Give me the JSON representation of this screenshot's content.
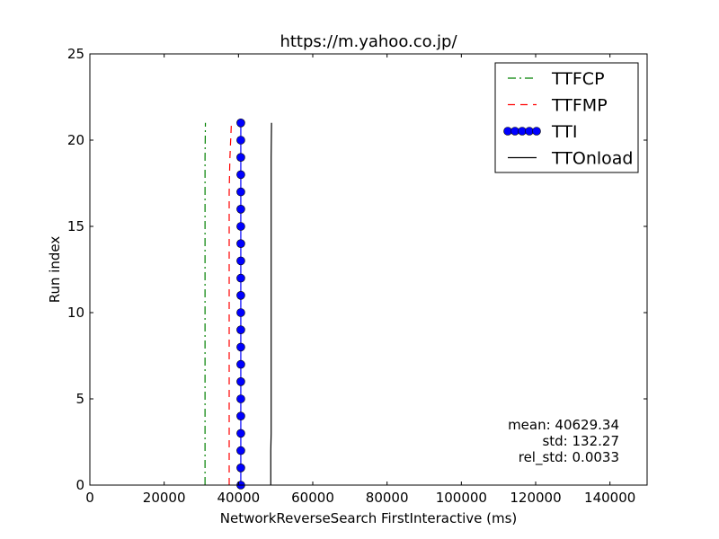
{
  "chart_data": {
    "type": "line",
    "title": "https://m.yahoo.co.jp/",
    "xlabel": "NetworkReverseSearch FirstInteractive (ms)",
    "ylabel": "Run index",
    "xlim": [
      0,
      150000
    ],
    "ylim": [
      0,
      25
    ],
    "xticks": [
      0,
      20000,
      40000,
      60000,
      80000,
      100000,
      120000,
      140000
    ],
    "xtick_labels": [
      "0",
      "20000",
      "40000",
      "60000",
      "80000",
      "100000",
      "120000",
      "140000"
    ],
    "yticks": [
      0,
      5,
      10,
      15,
      20,
      25
    ],
    "ytick_labels": [
      "0",
      "5",
      "10",
      "15",
      "20",
      "25"
    ],
    "grid": false,
    "legend_position": "top-right",
    "y": [
      0,
      1,
      2,
      3,
      4,
      5,
      6,
      7,
      8,
      9,
      10,
      11,
      12,
      13,
      14,
      15,
      16,
      17,
      18,
      19,
      20,
      21
    ],
    "series": [
      {
        "name": "TTFCP",
        "style": "dashdot",
        "color": "#008000",
        "marker": "none",
        "x": [
          31000,
          31000,
          31000,
          31000,
          31000,
          31000,
          31000,
          31000,
          31000,
          31000,
          31000,
          31000,
          31000,
          31000,
          31000,
          31000,
          31000,
          31000,
          31000,
          31000,
          31050,
          31100
        ]
      },
      {
        "name": "TTFMP",
        "style": "dashed",
        "color": "#ff0000",
        "marker": "none",
        "x": [
          37500,
          37500,
          37500,
          37500,
          37500,
          37500,
          37500,
          37500,
          37500,
          37500,
          37500,
          37500,
          37500,
          37500,
          37500,
          37500,
          37500,
          37500,
          37600,
          37700,
          37900,
          38100
        ]
      },
      {
        "name": "TTI",
        "style": "solid",
        "color": "#0000ff",
        "marker": "circle",
        "x": [
          40630,
          40630,
          40630,
          40630,
          40630,
          40630,
          40630,
          40630,
          40630,
          40630,
          40630,
          40630,
          40630,
          40630,
          40630,
          40630,
          40630,
          40630,
          40630,
          40630,
          40630,
          40630
        ]
      },
      {
        "name": "TTOnload",
        "style": "solid",
        "color": "#000000",
        "marker": "none",
        "x": [
          48700,
          48700,
          48700,
          48800,
          48800,
          48800,
          48800,
          48800,
          48800,
          48800,
          48800,
          48800,
          48800,
          48800,
          48800,
          48800,
          48800,
          48800,
          48800,
          48800,
          48850,
          48900
        ]
      }
    ],
    "annotations": {
      "mean": "mean: 40629.34",
      "std": "std: 132.27",
      "rel_std": "rel_std: 0.0033"
    }
  }
}
